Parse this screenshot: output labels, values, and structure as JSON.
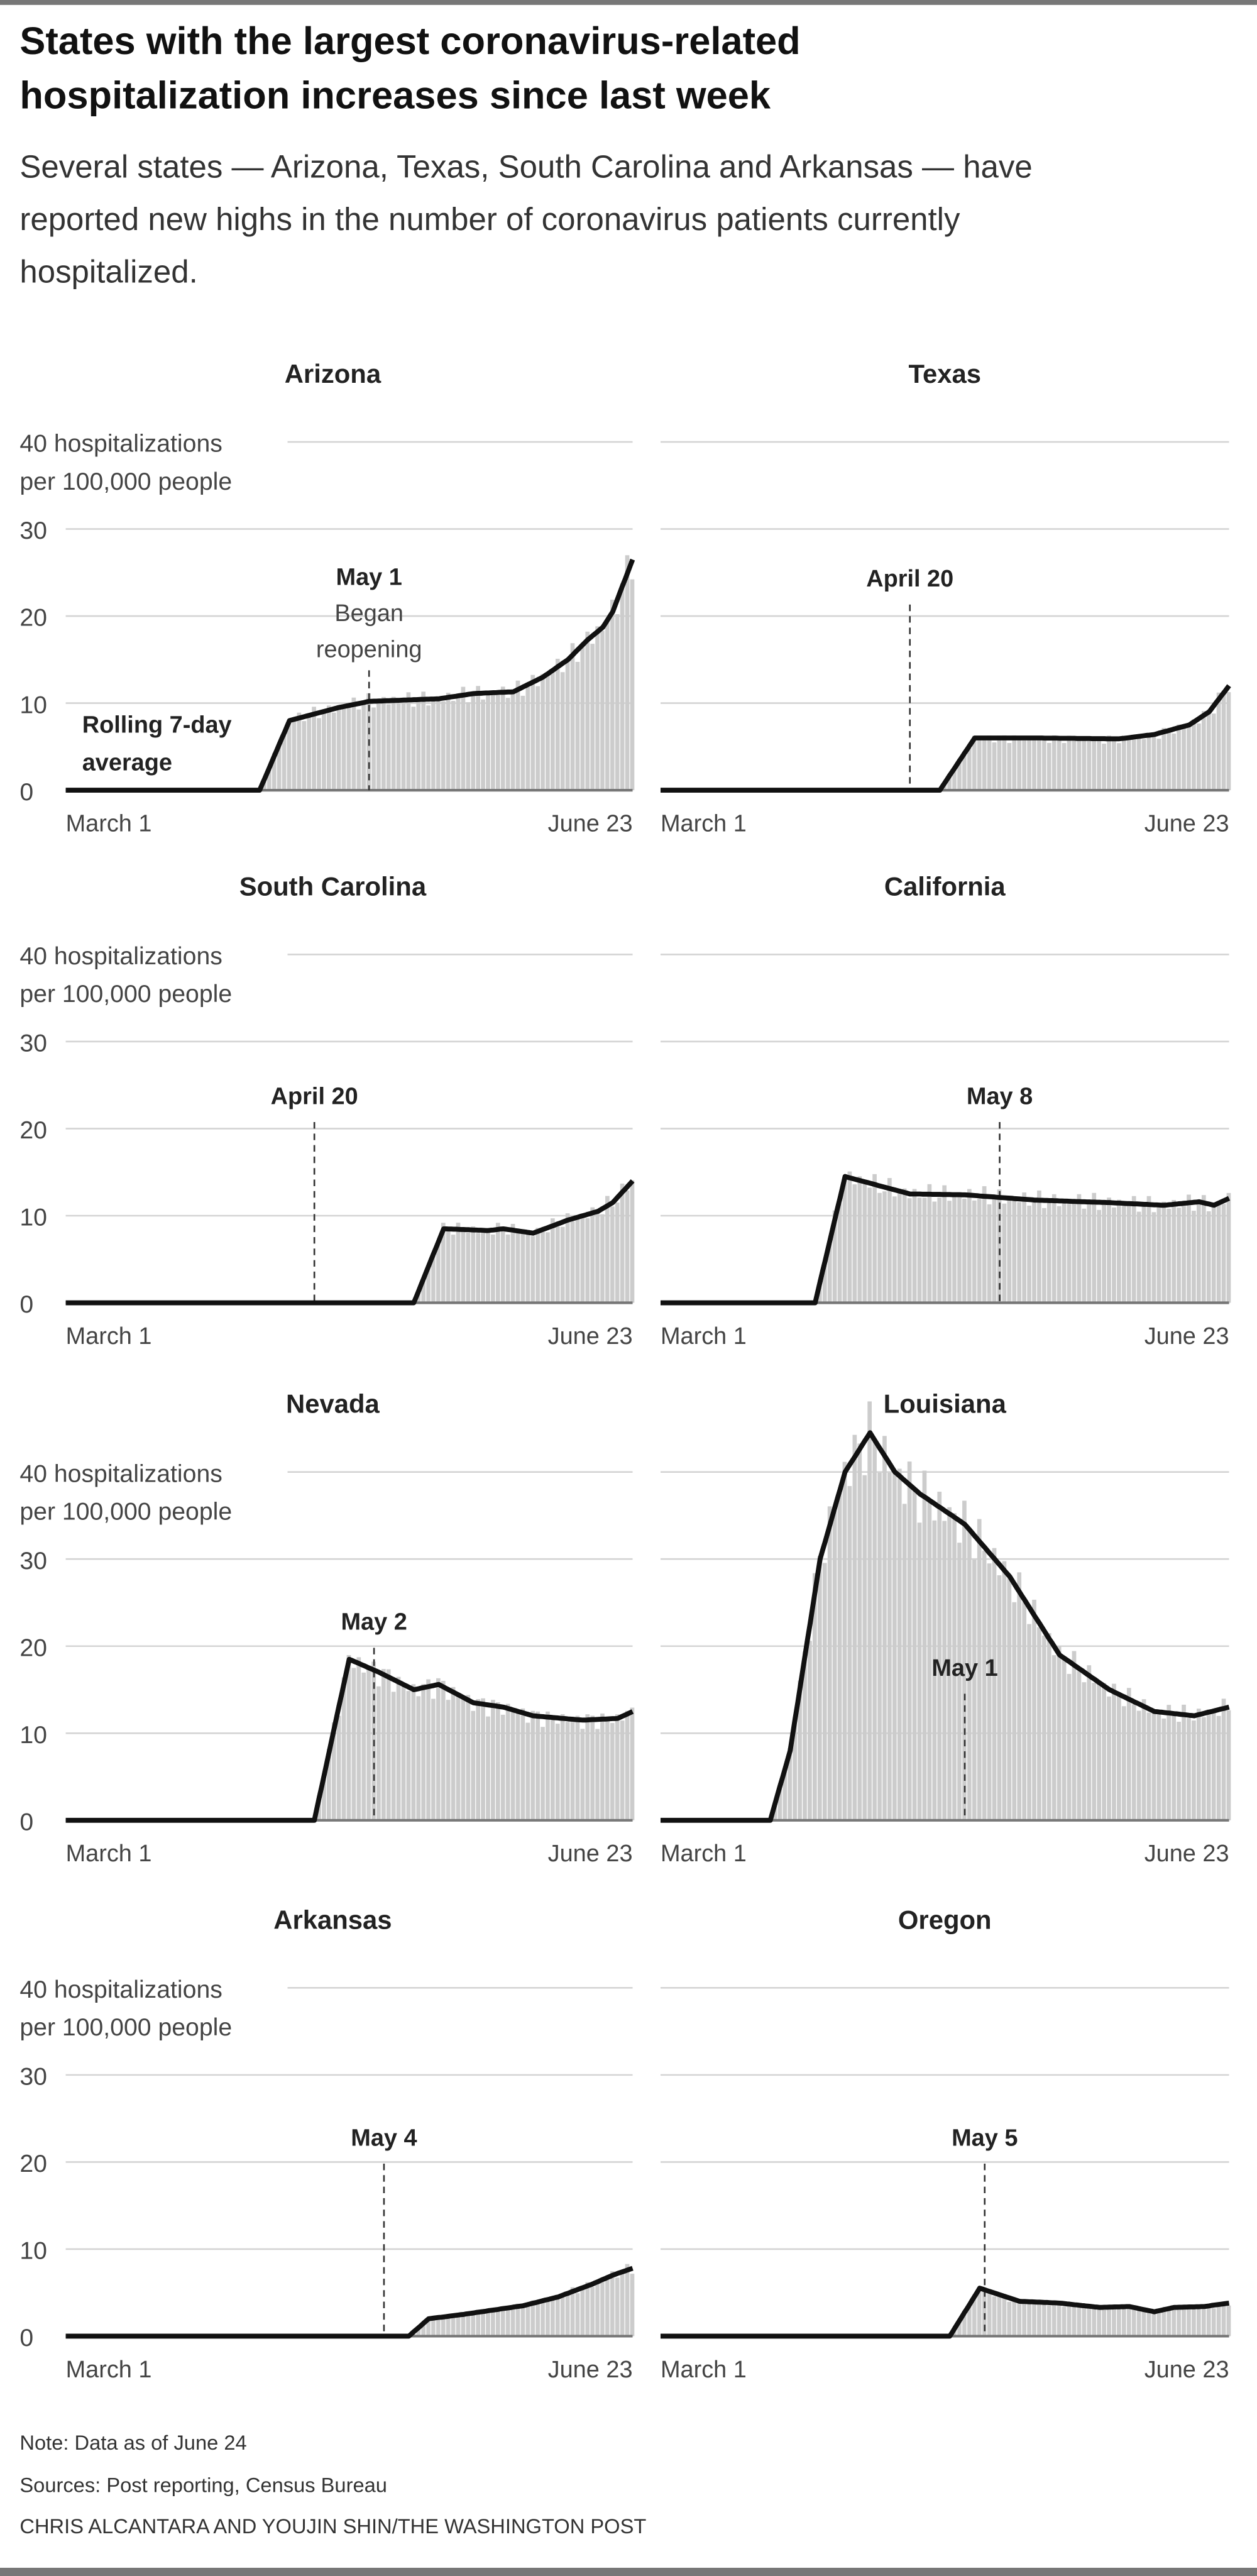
{
  "header": {
    "title_lines": [
      "States with the largest coronavirus-related",
      "hospitalization increases since last week"
    ],
    "subtitle_lines": [
      "Several states — Arizona, Texas, South Carolina and Arkansas — have",
      "reported new highs in the number of coronavirus patients currently",
      "hospitalized."
    ]
  },
  "axis": {
    "y_unit_line1": "40 hospitalizations",
    "y_unit_line2": "per 100,000 people",
    "y_ticks": [
      "0",
      "10",
      "20",
      "30"
    ],
    "x_start": "March 1",
    "x_end": "June 23"
  },
  "legend": {
    "avg_line1": "Rolling 7-day",
    "avg_line2": "average"
  },
  "colors": {
    "bars": "#cccccc",
    "line": "#111111",
    "frame": "#777777"
  },
  "chart_data": [
    {
      "type": "bar+line",
      "title": "Arizona",
      "ylim": [
        0,
        40
      ],
      "xlim": [
        "2020-03-01",
        "2020-06-23"
      ],
      "grid": true,
      "annotation": {
        "date": "2020-05-01",
        "label": "May 1",
        "note_lines": [
          "Began",
          "reopening"
        ]
      },
      "rolling_avg": [
        [
          "2020-03-01",
          0
        ],
        [
          "2020-04-09",
          0
        ],
        [
          "2020-04-15",
          8
        ],
        [
          "2020-04-25",
          9.5
        ],
        [
          "2020-05-01",
          10.2
        ],
        [
          "2020-05-15",
          10.5
        ],
        [
          "2020-05-22",
          11.1
        ],
        [
          "2020-05-30",
          11.3
        ],
        [
          "2020-06-05",
          13
        ],
        [
          "2020-06-10",
          15
        ],
        [
          "2020-06-14",
          17.3
        ],
        [
          "2020-06-17",
          18.7
        ],
        [
          "2020-06-19",
          20.5
        ],
        [
          "2020-06-21",
          23.5
        ],
        [
          "2020-06-23",
          26.5
        ]
      ]
    },
    {
      "type": "bar+line",
      "title": "Texas",
      "ylim": [
        0,
        40
      ],
      "xlim": [
        "2020-03-01",
        "2020-06-23"
      ],
      "grid": true,
      "annotation": {
        "date": "2020-04-20",
        "label": "April 20"
      },
      "rolling_avg": [
        [
          "2020-03-01",
          0
        ],
        [
          "2020-04-26",
          0
        ],
        [
          "2020-05-03",
          6
        ],
        [
          "2020-05-15",
          6
        ],
        [
          "2020-06-01",
          5.9
        ],
        [
          "2020-06-08",
          6.4
        ],
        [
          "2020-06-15",
          7.5
        ],
        [
          "2020-06-19",
          9
        ],
        [
          "2020-06-23",
          12
        ]
      ]
    },
    {
      "type": "bar+line",
      "title": "South Carolina",
      "ylim": [
        0,
        40
      ],
      "xlim": [
        "2020-03-01",
        "2020-06-23"
      ],
      "grid": true,
      "annotation": {
        "date": "2020-04-20",
        "label": "April 20"
      },
      "rolling_avg": [
        [
          "2020-03-01",
          0
        ],
        [
          "2020-05-10",
          0
        ],
        [
          "2020-05-16",
          8.5
        ],
        [
          "2020-05-25",
          8.3
        ],
        [
          "2020-05-28",
          8.5
        ],
        [
          "2020-06-03",
          8
        ],
        [
          "2020-06-10",
          9.5
        ],
        [
          "2020-06-16",
          10.5
        ],
        [
          "2020-06-19",
          11.5
        ],
        [
          "2020-06-23",
          14
        ]
      ]
    },
    {
      "type": "bar+line",
      "title": "California",
      "ylim": [
        0,
        40
      ],
      "xlim": [
        "2020-03-01",
        "2020-06-23"
      ],
      "grid": true,
      "annotation": {
        "date": "2020-05-08",
        "label": "May 8"
      },
      "rolling_avg": [
        [
          "2020-03-01",
          0
        ],
        [
          "2020-04-01",
          0
        ],
        [
          "2020-04-07",
          14.5
        ],
        [
          "2020-04-20",
          12.5
        ],
        [
          "2020-05-01",
          12.4
        ],
        [
          "2020-05-15",
          11.8
        ],
        [
          "2020-05-30",
          11.5
        ],
        [
          "2020-06-10",
          11.2
        ],
        [
          "2020-06-17",
          11.6
        ],
        [
          "2020-06-20",
          11.2
        ],
        [
          "2020-06-23",
          12
        ]
      ]
    },
    {
      "type": "bar+line",
      "title": "Nevada",
      "ylim": [
        0,
        40
      ],
      "xlim": [
        "2020-03-01",
        "2020-06-23"
      ],
      "grid": true,
      "annotation": {
        "date": "2020-05-02",
        "label": "May 2"
      },
      "rolling_avg": [
        [
          "2020-03-01",
          0
        ],
        [
          "2020-04-20",
          0
        ],
        [
          "2020-04-27",
          18.5
        ],
        [
          "2020-05-03",
          17
        ],
        [
          "2020-05-10",
          15
        ],
        [
          "2020-05-15",
          15.6
        ],
        [
          "2020-05-22",
          13.5
        ],
        [
          "2020-05-28",
          13
        ],
        [
          "2020-06-03",
          12
        ],
        [
          "2020-06-13",
          11.5
        ],
        [
          "2020-06-20",
          11.7
        ],
        [
          "2020-06-23",
          12.5
        ]
      ]
    },
    {
      "type": "bar+line",
      "title": "Louisiana",
      "ylim": [
        0,
        40
      ],
      "xlim": [
        "2020-03-01",
        "2020-06-23"
      ],
      "grid": true,
      "annotation": {
        "date": "2020-05-01",
        "label": "May 1"
      },
      "rolling_avg": [
        [
          "2020-03-01",
          0
        ],
        [
          "2020-03-23",
          0
        ],
        [
          "2020-03-27",
          8
        ],
        [
          "2020-04-02",
          30
        ],
        [
          "2020-04-07",
          40
        ],
        [
          "2020-04-12",
          44.5
        ],
        [
          "2020-04-17",
          40
        ],
        [
          "2020-04-22",
          37.5
        ],
        [
          "2020-05-01",
          34
        ],
        [
          "2020-05-10",
          28
        ],
        [
          "2020-05-20",
          19
        ],
        [
          "2020-05-30",
          15
        ],
        [
          "2020-06-08",
          12.5
        ],
        [
          "2020-06-16",
          12
        ],
        [
          "2020-06-23",
          13
        ]
      ]
    },
    {
      "type": "bar+line",
      "title": "Arkansas",
      "ylim": [
        0,
        40
      ],
      "xlim": [
        "2020-03-01",
        "2020-06-23"
      ],
      "grid": true,
      "annotation": {
        "date": "2020-05-04",
        "label": "May 4"
      },
      "rolling_avg": [
        [
          "2020-03-01",
          0
        ],
        [
          "2020-05-09",
          0
        ],
        [
          "2020-05-13",
          2
        ],
        [
          "2020-05-20",
          2.5
        ],
        [
          "2020-06-01",
          3.5
        ],
        [
          "2020-06-08",
          4.5
        ],
        [
          "2020-06-15",
          6
        ],
        [
          "2020-06-19",
          7
        ],
        [
          "2020-06-23",
          7.8
        ]
      ]
    },
    {
      "type": "bar+line",
      "title": "Oregon",
      "ylim": [
        0,
        40
      ],
      "xlim": [
        "2020-03-01",
        "2020-06-23"
      ],
      "grid": true,
      "annotation": {
        "date": "2020-05-05",
        "label": "May 5"
      },
      "rolling_avg": [
        [
          "2020-03-01",
          0
        ],
        [
          "2020-04-28",
          0
        ],
        [
          "2020-05-04",
          5.5
        ],
        [
          "2020-05-12",
          4
        ],
        [
          "2020-05-20",
          3.8
        ],
        [
          "2020-05-28",
          3.3
        ],
        [
          "2020-06-03",
          3.4
        ],
        [
          "2020-06-08",
          2.8
        ],
        [
          "2020-06-12",
          3.3
        ],
        [
          "2020-06-18",
          3.4
        ],
        [
          "2020-06-23",
          3.8
        ]
      ]
    }
  ],
  "footer": {
    "note": "Note: Data as of June 24",
    "sources": "Sources: Post reporting, Census Bureau",
    "credit": "CHRIS ALCANTARA AND YOUJIN SHIN/THE WASHINGTON POST"
  }
}
